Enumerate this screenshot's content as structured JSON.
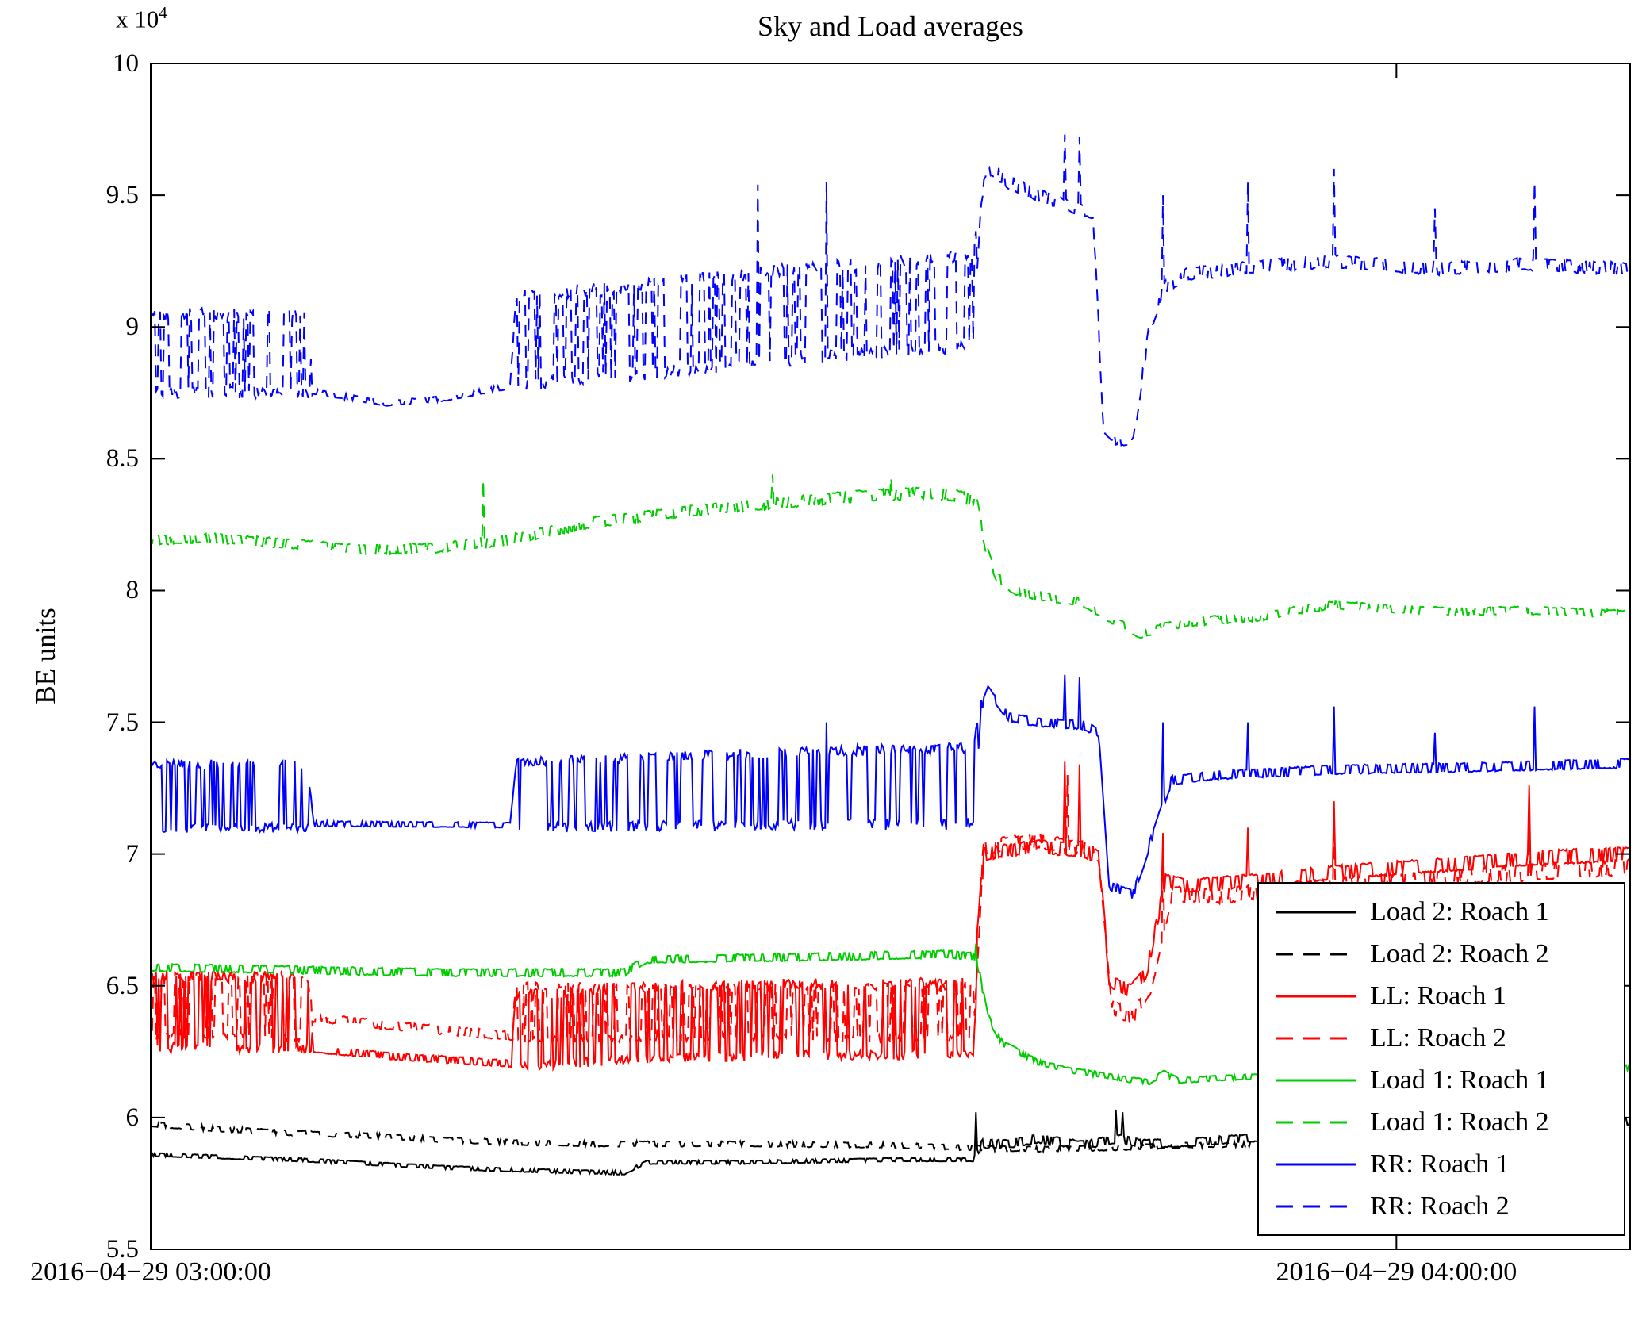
{
  "chart_data": {
    "type": "line",
    "title": "Sky and Load averages",
    "ylabel": "BE units",
    "y_scale_prefix": "x 10",
    "y_scale_exponent": "4",
    "ylim": [
      5.5,
      10
    ],
    "y_unit": "BE units x 10^4",
    "grid": false,
    "legend_position": "inside lower right",
    "y_ticks": [
      {
        "value": 5.5,
        "label": "5.5"
      },
      {
        "value": 6,
        "label": "6"
      },
      {
        "value": 6.5,
        "label": "6.5"
      },
      {
        "value": 7,
        "label": "7"
      },
      {
        "value": 7.5,
        "label": "7.5"
      },
      {
        "value": 8,
        "label": "8"
      },
      {
        "value": 8.5,
        "label": "8.5"
      },
      {
        "value": 9,
        "label": "9"
      },
      {
        "value": 9.5,
        "label": "9.5"
      },
      {
        "value": 10,
        "label": "10"
      }
    ],
    "x_ticks": [
      {
        "label": "2016−04−29 03:00:00",
        "u": 0
      },
      {
        "label": "2016−04−29 04:00:00",
        "u": 0.842
      }
    ],
    "series": [
      {
        "id": "load2-roach1",
        "name": "Load 2: Roach 1",
        "color": "#000000",
        "dash": false,
        "base": [
          [
            0,
            5.86
          ],
          [
            0.05,
            5.85
          ],
          [
            0.1,
            5.84
          ],
          [
            0.15,
            5.825
          ],
          [
            0.2,
            5.81
          ],
          [
            0.25,
            5.8
          ],
          [
            0.32,
            5.79
          ],
          [
            0.335,
            5.83
          ],
          [
            0.4,
            5.83
          ],
          [
            0.5,
            5.84
          ],
          [
            0.556,
            5.84
          ],
          [
            0.562,
            5.9
          ],
          [
            0.58,
            5.9
          ],
          [
            0.6,
            5.92
          ],
          [
            0.63,
            5.895
          ],
          [
            0.655,
            5.92
          ],
          [
            0.67,
            5.9
          ],
          [
            0.7,
            5.905
          ],
          [
            0.75,
            5.925
          ],
          [
            0.8,
            5.94
          ],
          [
            0.85,
            5.95
          ],
          [
            0.9,
            5.96
          ],
          [
            0.95,
            5.97
          ],
          [
            1,
            5.985
          ]
        ],
        "amp": [
          [
            0,
            0.006
          ],
          [
            0.556,
            0.006
          ],
          [
            0.562,
            0.015
          ],
          [
            1,
            0.012
          ]
        ],
        "spikes": [
          [
            0.558,
            6.02
          ],
          [
            0.652,
            6.03
          ],
          [
            0.657,
            6.02
          ],
          [
            0.94,
            6.0
          ]
        ]
      },
      {
        "id": "load2-roach2",
        "name": "Load 2: Roach 2",
        "color": "#000000",
        "dash": true,
        "base": [
          [
            0,
            5.975
          ],
          [
            0.05,
            5.955
          ],
          [
            0.1,
            5.94
          ],
          [
            0.15,
            5.93
          ],
          [
            0.2,
            5.915
          ],
          [
            0.25,
            5.905
          ],
          [
            0.3,
            5.9
          ],
          [
            0.4,
            5.9
          ],
          [
            0.5,
            5.895
          ],
          [
            0.556,
            5.885
          ],
          [
            0.6,
            5.88
          ],
          [
            0.65,
            5.885
          ],
          [
            0.7,
            5.895
          ],
          [
            0.75,
            5.9
          ],
          [
            0.8,
            5.915
          ],
          [
            0.85,
            5.925
          ],
          [
            0.9,
            5.935
          ],
          [
            0.95,
            5.94
          ],
          [
            1,
            5.95
          ]
        ],
        "amp": [
          [
            0,
            0.009
          ],
          [
            1,
            0.009
          ]
        ],
        "spikes": []
      },
      {
        "id": "ll-roach1",
        "name": "LL: Roach 1",
        "color": "#ff0000",
        "dash": false,
        "base": [
          [
            0,
            6.4
          ],
          [
            0.106,
            6.4
          ],
          [
            0.11,
            6.26
          ],
          [
            0.17,
            6.23
          ],
          [
            0.243,
            6.205
          ],
          [
            0.247,
            6.33
          ],
          [
            0.33,
            6.36
          ],
          [
            0.45,
            6.375
          ],
          [
            0.556,
            6.375
          ],
          [
            0.563,
            7.0
          ],
          [
            0.6,
            7.03
          ],
          [
            0.63,
            7.01
          ],
          [
            0.641,
            6.99
          ],
          [
            0.648,
            6.52
          ],
          [
            0.662,
            6.48
          ],
          [
            0.673,
            6.55
          ],
          [
            0.686,
            6.9
          ],
          [
            0.7,
            6.88
          ],
          [
            0.75,
            6.9
          ],
          [
            0.8,
            6.93
          ],
          [
            0.85,
            6.95
          ],
          [
            0.9,
            6.97
          ],
          [
            0.95,
            6.99
          ],
          [
            1,
            7.0
          ]
        ],
        "amp": [
          [
            0,
            0.135
          ],
          [
            0.106,
            0.135
          ],
          [
            0.11,
            0.012
          ],
          [
            0.243,
            0.012
          ],
          [
            0.247,
            0.135
          ],
          [
            0.556,
            0.135
          ],
          [
            0.563,
            0.022
          ],
          [
            1,
            0.025
          ]
        ],
        "spikes": [
          [
            0.618,
            7.35
          ],
          [
            0.628,
            7.34
          ],
          [
            0.684,
            7.08
          ],
          [
            0.742,
            7.1
          ],
          [
            0.8,
            7.2
          ],
          [
            0.932,
            7.26
          ]
        ]
      },
      {
        "id": "ll-roach2",
        "name": "LL: Roach 2",
        "color": "#ff0000",
        "dash": true,
        "base": [
          [
            0,
            6.42
          ],
          [
            0.106,
            6.42
          ],
          [
            0.11,
            6.38
          ],
          [
            0.17,
            6.345
          ],
          [
            0.243,
            6.31
          ],
          [
            0.247,
            6.4
          ],
          [
            0.4,
            6.4
          ],
          [
            0.556,
            6.4
          ],
          [
            0.563,
            7.03
          ],
          [
            0.6,
            7.05
          ],
          [
            0.63,
            7.02
          ],
          [
            0.641,
            7.0
          ],
          [
            0.65,
            6.42
          ],
          [
            0.664,
            6.38
          ],
          [
            0.676,
            6.5
          ],
          [
            0.69,
            6.85
          ],
          [
            0.72,
            6.84
          ],
          [
            0.8,
            6.88
          ],
          [
            0.9,
            6.92
          ],
          [
            1,
            6.95
          ]
        ],
        "amp": [
          [
            0,
            0.115
          ],
          [
            0.106,
            0.115
          ],
          [
            0.11,
            0.015
          ],
          [
            0.243,
            0.015
          ],
          [
            0.247,
            0.1
          ],
          [
            0.556,
            0.1
          ],
          [
            0.563,
            0.025
          ],
          [
            1,
            0.028
          ]
        ],
        "spikes": [
          [
            0.62,
            7.3
          ],
          [
            0.684,
            7.02
          ],
          [
            0.8,
            7.12
          ],
          [
            0.932,
            7.18
          ]
        ]
      },
      {
        "id": "load1-roach1",
        "name": "Load 1: Roach 1",
        "color": "#00cc00",
        "dash": false,
        "base": [
          [
            0,
            6.57
          ],
          [
            0.1,
            6.56
          ],
          [
            0.2,
            6.55
          ],
          [
            0.32,
            6.55
          ],
          [
            0.335,
            6.6
          ],
          [
            0.45,
            6.61
          ],
          [
            0.54,
            6.62
          ],
          [
            0.558,
            6.61
          ],
          [
            0.566,
            6.38
          ],
          [
            0.576,
            6.28
          ],
          [
            0.6,
            6.21
          ],
          [
            0.62,
            6.18
          ],
          [
            0.64,
            6.165
          ],
          [
            0.66,
            6.145
          ],
          [
            0.675,
            6.135
          ],
          [
            0.685,
            6.17
          ],
          [
            0.695,
            6.14
          ],
          [
            0.72,
            6.15
          ],
          [
            0.8,
            6.165
          ],
          [
            0.9,
            6.18
          ],
          [
            1,
            6.19
          ]
        ],
        "amp": [
          [
            0,
            0.013
          ],
          [
            0.55,
            0.013
          ],
          [
            0.6,
            0.009
          ],
          [
            1,
            0.009
          ]
        ],
        "spikes": [
          [
            0.558,
            6.66
          ]
        ]
      },
      {
        "id": "load1-roach2",
        "name": "Load 1: Roach 2",
        "color": "#00cc00",
        "dash": true,
        "base": [
          [
            0,
            8.19
          ],
          [
            0.04,
            8.2
          ],
          [
            0.09,
            8.18
          ],
          [
            0.14,
            8.155
          ],
          [
            0.19,
            8.16
          ],
          [
            0.24,
            8.19
          ],
          [
            0.3,
            8.26
          ],
          [
            0.36,
            8.3
          ],
          [
            0.42,
            8.33
          ],
          [
            0.47,
            8.355
          ],
          [
            0.52,
            8.37
          ],
          [
            0.545,
            8.36
          ],
          [
            0.558,
            8.34
          ],
          [
            0.565,
            8.15
          ],
          [
            0.572,
            8.05
          ],
          [
            0.585,
            8.0
          ],
          [
            0.6,
            7.98
          ],
          [
            0.63,
            7.955
          ],
          [
            0.65,
            7.89
          ],
          [
            0.668,
            7.835
          ],
          [
            0.685,
            7.86
          ],
          [
            0.7,
            7.88
          ],
          [
            0.75,
            7.9
          ],
          [
            0.78,
            7.93
          ],
          [
            0.8,
            7.945
          ],
          [
            0.84,
            7.93
          ],
          [
            0.88,
            7.92
          ],
          [
            0.93,
            7.925
          ],
          [
            1,
            7.91
          ]
        ],
        "amp": [
          [
            0,
            0.016
          ],
          [
            0.3,
            0.018
          ],
          [
            0.55,
            0.02
          ],
          [
            0.6,
            0.015
          ],
          [
            1,
            0.013
          ]
        ],
        "spikes": [
          [
            0.225,
            8.42
          ],
          [
            0.42,
            8.44
          ],
          [
            0.5,
            8.43
          ]
        ]
      },
      {
        "id": "rr-roach1",
        "name": "RR: Roach 1",
        "color": "#0000ff",
        "dash": false,
        "base": [
          [
            0,
            7.22
          ],
          [
            0.106,
            7.22
          ],
          [
            0.11,
            7.115
          ],
          [
            0.243,
            7.11
          ],
          [
            0.247,
            7.225
          ],
          [
            0.4,
            7.245
          ],
          [
            0.556,
            7.26
          ],
          [
            0.561,
            7.55
          ],
          [
            0.566,
            7.62
          ],
          [
            0.58,
            7.52
          ],
          [
            0.6,
            7.5
          ],
          [
            0.63,
            7.49
          ],
          [
            0.641,
            7.46
          ],
          [
            0.648,
            6.88
          ],
          [
            0.664,
            6.845
          ],
          [
            0.676,
            7.05
          ],
          [
            0.69,
            7.28
          ],
          [
            0.72,
            7.3
          ],
          [
            0.8,
            7.32
          ],
          [
            0.9,
            7.33
          ],
          [
            1,
            7.345
          ]
        ],
        "amp": [
          [
            0,
            0.12
          ],
          [
            0.106,
            0.12
          ],
          [
            0.11,
            0.009
          ],
          [
            0.243,
            0.009
          ],
          [
            0.247,
            0.125
          ],
          [
            0.556,
            0.145
          ],
          [
            0.562,
            0.015
          ],
          [
            1,
            0.016
          ]
        ],
        "spikes": [
          [
            0.457,
            7.5
          ],
          [
            0.618,
            7.68
          ],
          [
            0.628,
            7.67
          ],
          [
            0.684,
            7.5
          ],
          [
            0.742,
            7.5
          ],
          [
            0.8,
            7.56
          ],
          [
            0.868,
            7.46
          ],
          [
            0.935,
            7.56
          ]
        ]
      },
      {
        "id": "rr-roach2",
        "name": "RR: Roach 2",
        "color": "#0000ff",
        "dash": true,
        "base": [
          [
            0,
            8.9
          ],
          [
            0.106,
            8.9
          ],
          [
            0.11,
            8.755
          ],
          [
            0.16,
            8.71
          ],
          [
            0.2,
            8.73
          ],
          [
            0.243,
            8.775
          ],
          [
            0.247,
            8.95
          ],
          [
            0.32,
            8.98
          ],
          [
            0.4,
            9.03
          ],
          [
            0.48,
            9.07
          ],
          [
            0.556,
            9.1
          ],
          [
            0.561,
            9.5
          ],
          [
            0.568,
            9.6
          ],
          [
            0.58,
            9.55
          ],
          [
            0.6,
            9.5
          ],
          [
            0.62,
            9.46
          ],
          [
            0.637,
            9.43
          ],
          [
            0.644,
            8.62
          ],
          [
            0.652,
            8.57
          ],
          [
            0.664,
            8.56
          ],
          [
            0.675,
            9.0
          ],
          [
            0.686,
            9.15
          ],
          [
            0.7,
            9.2
          ],
          [
            0.75,
            9.23
          ],
          [
            0.8,
            9.25
          ],
          [
            0.87,
            9.22
          ],
          [
            0.93,
            9.24
          ],
          [
            1,
            9.22
          ]
        ],
        "amp": [
          [
            0,
            0.15
          ],
          [
            0.106,
            0.15
          ],
          [
            0.11,
            0.009
          ],
          [
            0.243,
            0.009
          ],
          [
            0.247,
            0.17
          ],
          [
            0.556,
            0.17
          ],
          [
            0.562,
            0.025
          ],
          [
            0.64,
            0.018
          ],
          [
            0.663,
            0.012
          ],
          [
            0.676,
            0.022
          ],
          [
            1,
            0.022
          ]
        ],
        "spikes": [
          [
            0.41,
            9.54
          ],
          [
            0.457,
            9.55
          ],
          [
            0.618,
            9.73
          ],
          [
            0.628,
            9.72
          ],
          [
            0.684,
            9.5
          ],
          [
            0.742,
            9.55
          ],
          [
            0.8,
            9.6
          ],
          [
            0.868,
            9.45
          ],
          [
            0.935,
            9.55
          ]
        ]
      }
    ]
  }
}
